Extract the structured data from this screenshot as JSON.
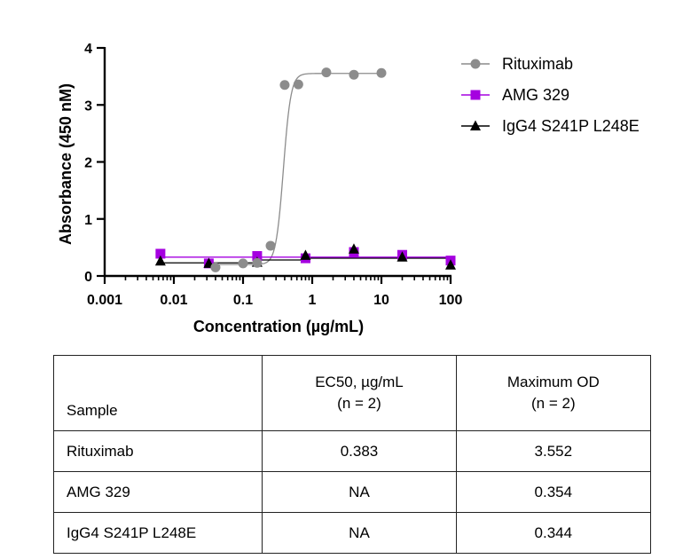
{
  "chart_data": {
    "type": "scatter",
    "x_scale": "log",
    "xlabel": "Concentration (µg/mL)",
    "ylabel": "Absorbance (450 nM)",
    "xlim": [
      0.001,
      100
    ],
    "ylim": [
      0,
      4
    ],
    "x_ticks": [
      {
        "value": 0.001,
        "label": "0.001"
      },
      {
        "value": 0.01,
        "label": "0.01"
      },
      {
        "value": 0.1,
        "label": "0.1"
      },
      {
        "value": 1,
        "label": "1"
      },
      {
        "value": 10,
        "label": "10"
      },
      {
        "value": 100,
        "label": "100"
      }
    ],
    "y_ticks": [
      {
        "value": 0,
        "label": "0"
      },
      {
        "value": 1,
        "label": "1"
      },
      {
        "value": 2,
        "label": "2"
      },
      {
        "value": 3,
        "label": "3"
      },
      {
        "value": 4,
        "label": "4"
      }
    ],
    "grid": false,
    "legend_position": "top-right",
    "series": [
      {
        "name": "Rituximab",
        "marker": "circle",
        "color": "#8c8c8c",
        "x": [
          0.04,
          0.1,
          0.16,
          0.25,
          0.4,
          0.63,
          1.6,
          4,
          10
        ],
        "y": [
          0.15,
          0.22,
          0.23,
          0.53,
          3.35,
          3.36,
          3.57,
          3.53,
          3.56
        ],
        "fit": {
          "bottom": 0.2,
          "top": 3.552,
          "ec50": 0.383,
          "hill": 8
        }
      },
      {
        "name": "AMG 329",
        "marker": "square",
        "color": "#a500e0",
        "x": [
          0.0064,
          0.032,
          0.16,
          0.8,
          4,
          20,
          100
        ],
        "y": [
          0.39,
          0.22,
          0.35,
          0.31,
          0.42,
          0.37,
          0.27
        ],
        "fit_level": 0.33
      },
      {
        "name": "IgG4 S241P L248E",
        "marker": "triangle",
        "color": "#000000",
        "x": [
          0.0064,
          0.032,
          0.16,
          0.8,
          4,
          20,
          100
        ],
        "y": [
          0.26,
          0.22,
          0.24,
          0.36,
          0.47,
          0.33,
          0.19
        ],
        "fit_steps": [
          {
            "from": 0.0064,
            "to": 0.16,
            "y": 0.23
          },
          {
            "from": 0.16,
            "to": 0.8,
            "y": 0.28
          },
          {
            "from": 0.8,
            "to": 100,
            "y": 0.31
          }
        ]
      }
    ]
  },
  "table": {
    "headers": {
      "sample": "Sample",
      "ec50_line1": "EC50, µg/mL",
      "ec50_line2": "(n = 2)",
      "max_line1": "Maximum OD",
      "max_line2": "(n = 2)"
    },
    "rows": [
      {
        "sample": "Rituximab",
        "ec50": "0.383",
        "max_od": "3.552"
      },
      {
        "sample": "AMG 329",
        "ec50": "NA",
        "max_od": "0.354"
      },
      {
        "sample": "IgG4 S241P L248E",
        "ec50": "NA",
        "max_od": "0.344"
      }
    ]
  }
}
